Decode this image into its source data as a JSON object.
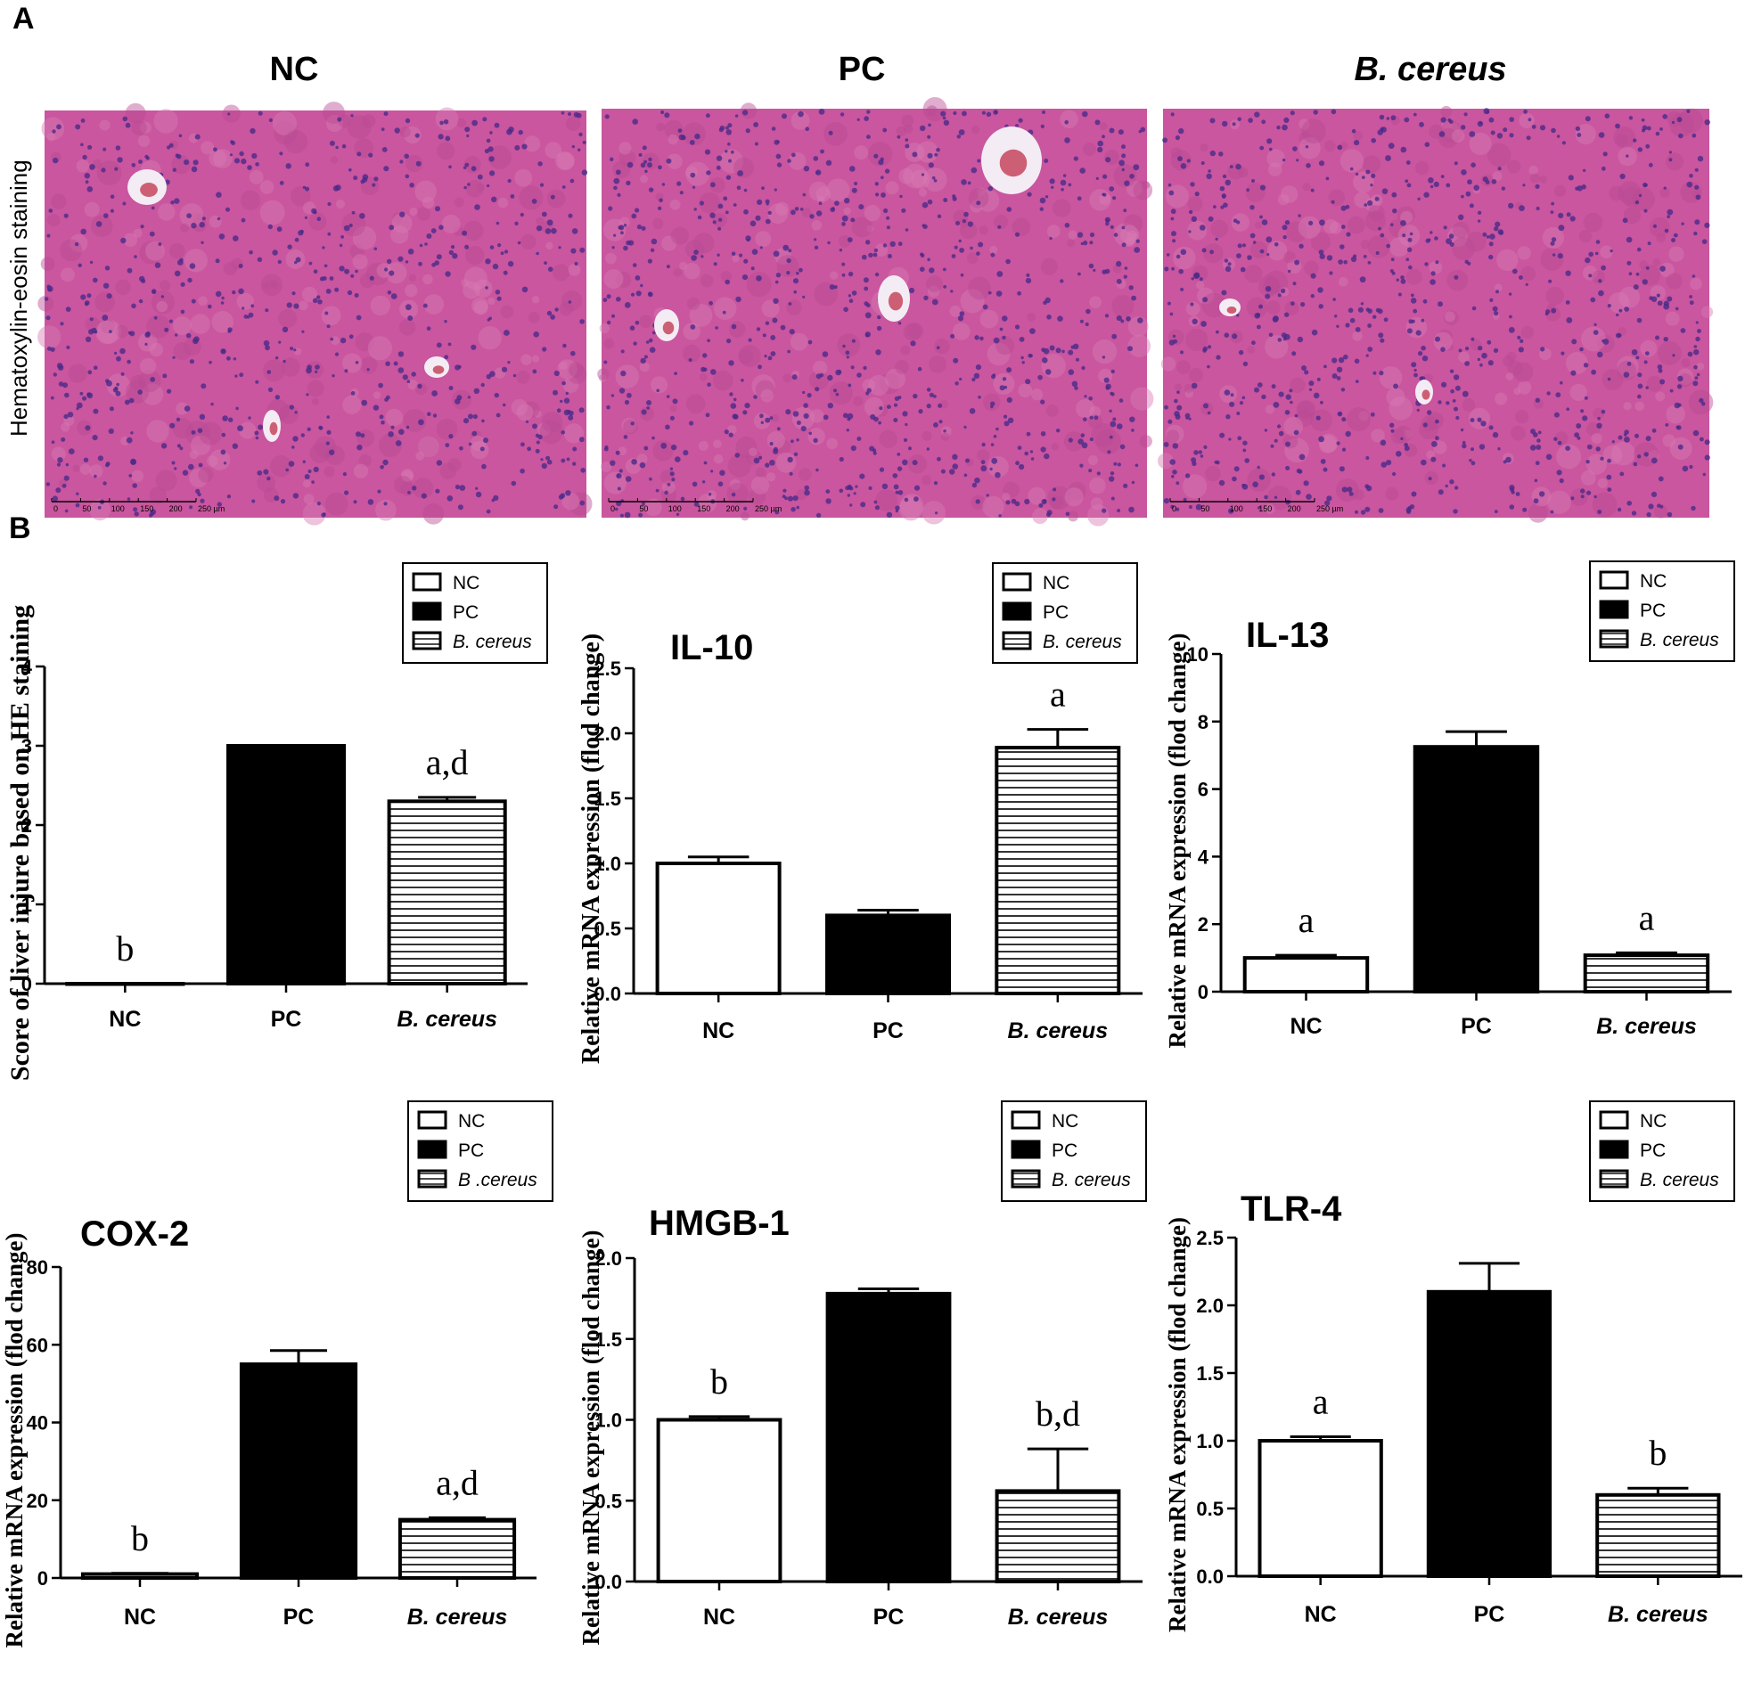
{
  "figure": {
    "panel_a_label": "A",
    "panel_b_label": "B",
    "histology_row_label": "Hematoxylin-eosin staining",
    "histology_columns": [
      "NC",
      "PC",
      "B. cereus"
    ],
    "scale_bar_ticks": [
      "0",
      "50",
      "100",
      "150",
      "200",
      "250 µm"
    ],
    "colors": {
      "tissue_base": "#c9569e",
      "nuclei": "#4a2a8a",
      "vessel": "#f4ecf4",
      "blood": "#c0304a"
    }
  },
  "chart_data": [
    {
      "type": "bar",
      "title": "",
      "ylabel": "Score of liver injure based on HE staining",
      "categories": [
        "NC",
        "PC",
        "B. cereus"
      ],
      "values": [
        0,
        3.0,
        2.3
      ],
      "errors": [
        0,
        0,
        0.05
      ],
      "significance": [
        "b",
        "",
        "a,d"
      ],
      "ylim": [
        0,
        4
      ],
      "yticks": [
        "0",
        "1",
        "2",
        "3",
        "4"
      ],
      "legend": [
        "NC",
        "PC",
        "B. cereus"
      ],
      "legend_placement": "top-right",
      "fills": [
        "white",
        "black",
        "stripes"
      ],
      "grid": false
    },
    {
      "type": "bar",
      "title": "IL-10",
      "ylabel": "Relative mRNA expression (flod change)",
      "categories": [
        "NC",
        "PC",
        "B. cereus"
      ],
      "values": [
        1.0,
        0.6,
        1.89
      ],
      "errors": [
        0.05,
        0.04,
        0.14
      ],
      "significance": [
        "",
        "",
        "a"
      ],
      "ylim": [
        0,
        2.5
      ],
      "yticks": [
        "0.0",
        "0.5",
        "1.0",
        "1.5",
        "2.0",
        "2.5"
      ],
      "legend": [
        "NC",
        "PC",
        "B. cereus"
      ],
      "legend_placement": "top-right",
      "fills": [
        "white",
        "black",
        "stripes"
      ],
      "grid": false
    },
    {
      "type": "bar",
      "title": "IL-13",
      "ylabel": "Relative mRNA expression (flod change)",
      "categories": [
        "NC",
        "PC",
        "B. cereus"
      ],
      "values": [
        1.0,
        7.25,
        1.08
      ],
      "errors": [
        0.08,
        0.45,
        0.07
      ],
      "significance": [
        "a",
        "",
        "a"
      ],
      "ylim": [
        0,
        10
      ],
      "yticks": [
        "0",
        "2",
        "4",
        "6",
        "8",
        "10"
      ],
      "legend": [
        "NC",
        "PC",
        "B. cereus"
      ],
      "legend_placement": "top-right",
      "fills": [
        "white",
        "black",
        "stripes"
      ],
      "grid": false
    },
    {
      "type": "bar",
      "title": "COX-2",
      "ylabel": "Relative mRNA expression (flod change)",
      "categories": [
        "NC",
        "PC",
        "B. cereus"
      ],
      "values": [
        1.0,
        55.0,
        15.0
      ],
      "errors": [
        0.2,
        3.5,
        0.5
      ],
      "significance": [
        "b",
        "",
        "a,d"
      ],
      "ylim": [
        0,
        80
      ],
      "yticks": [
        "0",
        "20",
        "40",
        "60",
        "80"
      ],
      "legend": [
        "NC",
        "PC",
        "B .cereus"
      ],
      "legend_placement": "top-right",
      "fills": [
        "white",
        "black",
        "stripes"
      ],
      "grid": false
    },
    {
      "type": "bar",
      "title": "HMGB-1",
      "ylabel": "Relative mRNA expression (flod change)",
      "categories": [
        "NC",
        "PC",
        "B. cereus"
      ],
      "values": [
        1.0,
        1.78,
        0.56
      ],
      "errors": [
        0.02,
        0.03,
        0.26
      ],
      "significance": [
        "b",
        "",
        "b,d"
      ],
      "ylim": [
        0,
        2.0
      ],
      "yticks": [
        "0.0",
        "0.5",
        "1.0",
        "1.5",
        "2.0"
      ],
      "legend": [
        "NC",
        "PC",
        "B. cereus"
      ],
      "legend_placement": "top-right",
      "fills": [
        "white",
        "black",
        "stripes"
      ],
      "grid": false
    },
    {
      "type": "bar",
      "title": "TLR-4",
      "ylabel": "Relative mRNA expression (flod change)",
      "categories": [
        "NC",
        "PC",
        "B. cereus"
      ],
      "values": [
        1.0,
        2.1,
        0.6
      ],
      "errors": [
        0.03,
        0.21,
        0.05
      ],
      "significance": [
        "a",
        "",
        "b"
      ],
      "ylim": [
        0,
        2.5
      ],
      "yticks": [
        "0.0",
        "0.5",
        "1.0",
        "1.5",
        "2.0",
        "2.5"
      ],
      "legend": [
        "NC",
        "PC",
        "B. cereus"
      ],
      "legend_placement": "top-right",
      "fills": [
        "white",
        "black",
        "stripes"
      ],
      "grid": false
    }
  ]
}
